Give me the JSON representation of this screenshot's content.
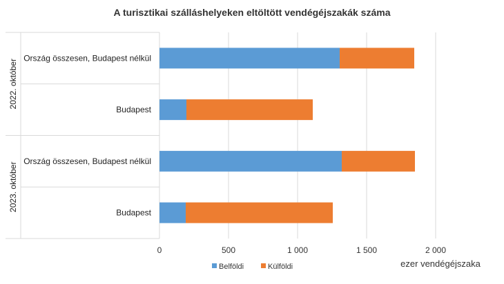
{
  "chart_data": {
    "type": "bar",
    "orientation": "horizontal",
    "stacked": true,
    "title": "A turisztikai szálláshelyeken eltöltött vendégéjszakák száma",
    "groups": [
      {
        "label": "2022. október",
        "categories": [
          "Ország összesen, Budapest nélkül",
          "Budapest"
        ]
      },
      {
        "label": "2023. október",
        "categories": [
          "Ország összesen, Budapest nélkül",
          "Budapest"
        ]
      }
    ],
    "series": [
      {
        "name": "Belföldi",
        "color": "#5b9bd5",
        "values": [
          1305,
          195,
          1320,
          190
        ]
      },
      {
        "name": "Külföldi",
        "color": "#ed7d31",
        "values": [
          540,
          915,
          530,
          1065
        ]
      }
    ],
    "xlim": [
      0,
      2000
    ],
    "xticks": [
      "0",
      "500",
      "1 000",
      "1 500",
      "2 000"
    ],
    "xtick_values": [
      0,
      500,
      1000,
      1500,
      2000
    ],
    "xlabel": "ezer vendégéjszaka",
    "grid": true,
    "legend_position": "bottom"
  }
}
